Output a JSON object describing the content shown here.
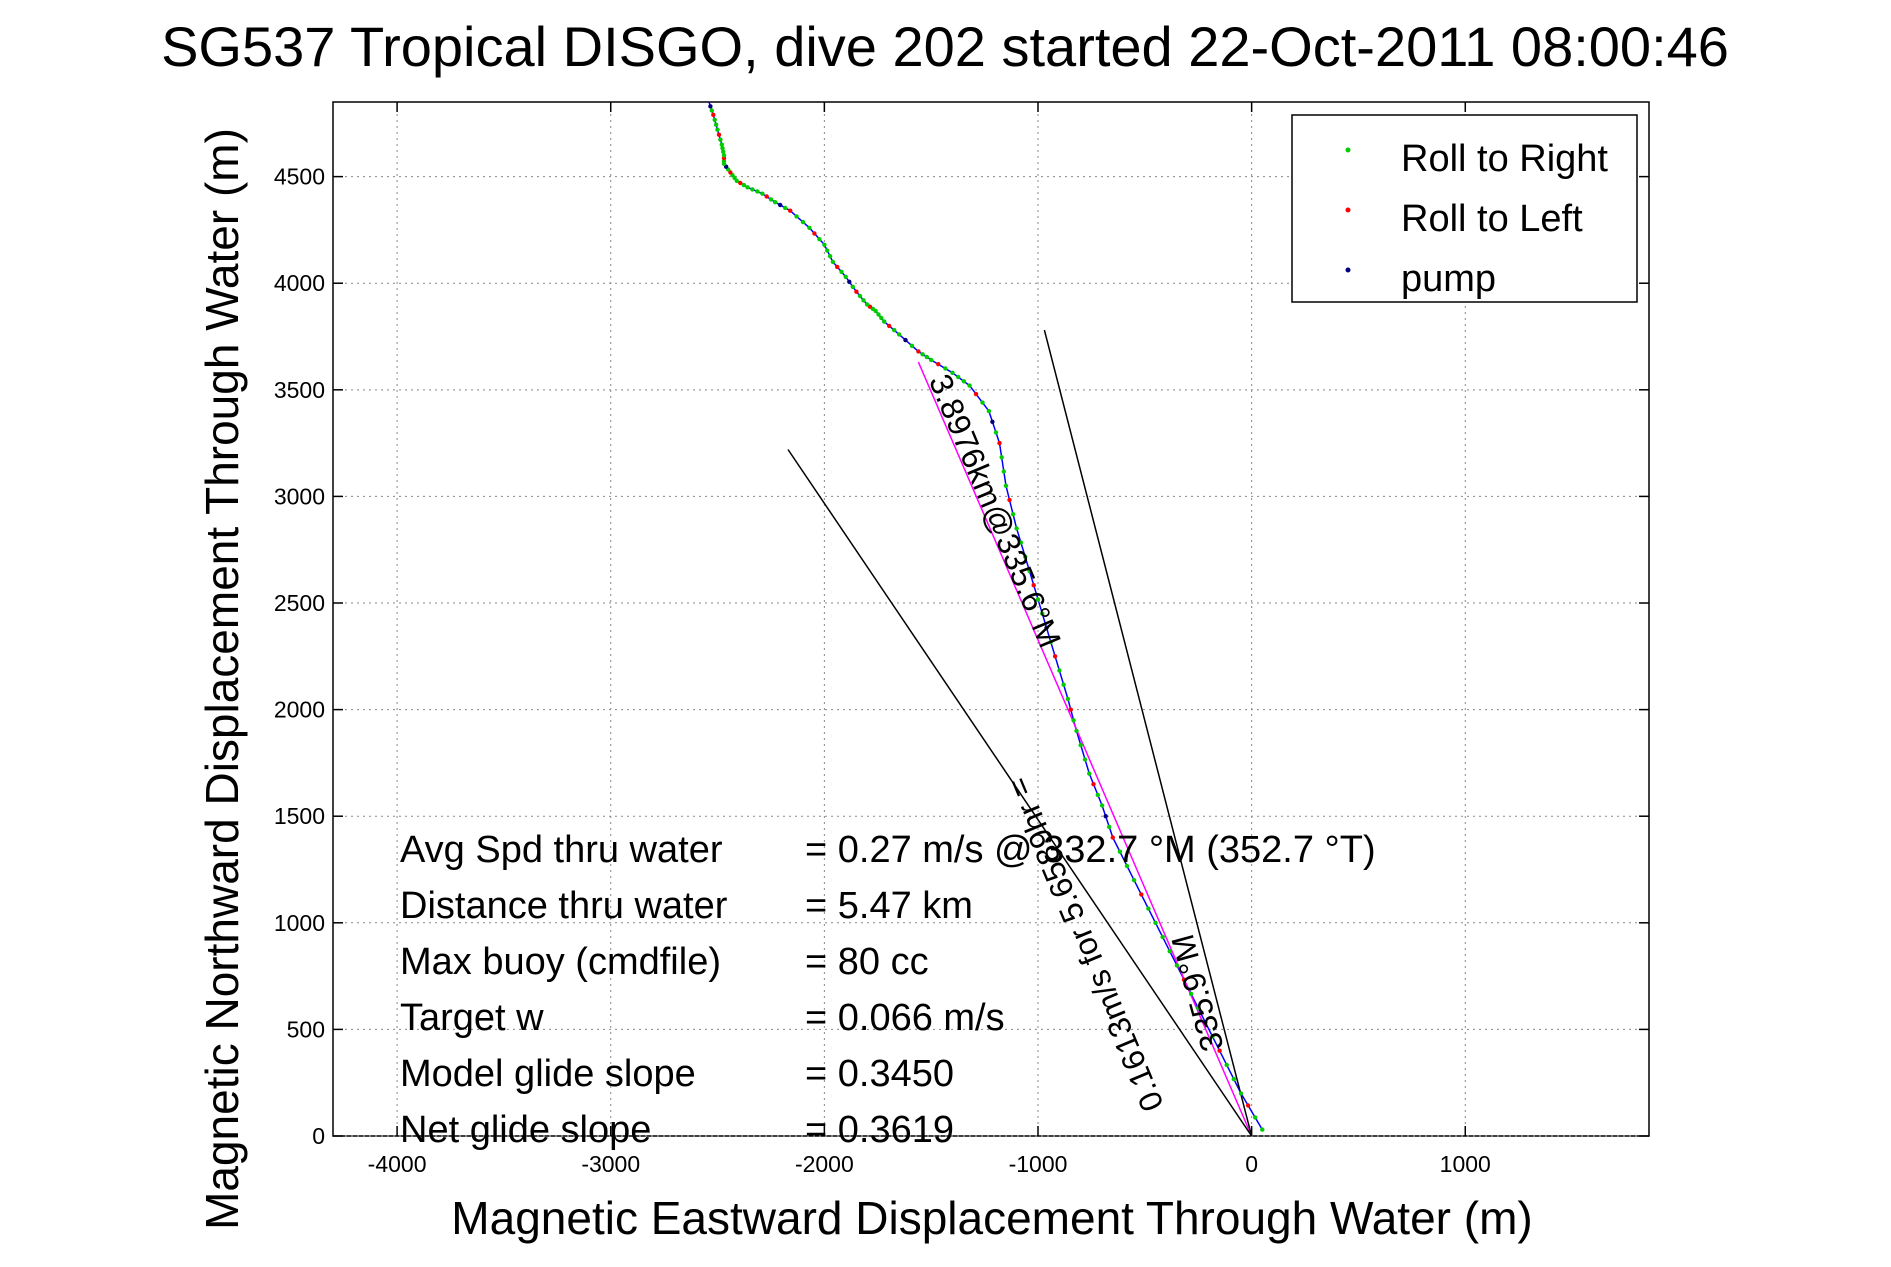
{
  "chart_data": {
    "type": "line",
    "title": "SG537 Tropical DISGO, dive 202 started 22-Oct-2011 08:00:46",
    "xlabel": "Magnetic Eastward Displacement Through Water (m)",
    "ylabel": "Magnetic Northward Displacement Through Water (m)",
    "xlim": [
      -4300,
      1860
    ],
    "ylim": [
      0,
      4850
    ],
    "xticks": [
      -4000,
      -3000,
      -2000,
      -1000,
      0,
      1000
    ],
    "yticks": [
      0,
      500,
      1000,
      1500,
      2000,
      2500,
      3000,
      3500,
      4000,
      4500
    ],
    "grid": true,
    "legend_position": "top-right",
    "legend": [
      {
        "label": "Roll to Right",
        "color": "#00cc00"
      },
      {
        "label": "Roll to Left",
        "color": "#ff0000"
      },
      {
        "label": "pump",
        "color": "#000080"
      }
    ],
    "series": [
      {
        "color": "#0000ff",
        "x": [
          50,
          -50,
          -150,
          -250,
          -350,
          -450,
          -550,
          -650,
          -700,
          -760,
          -820,
          -860,
          -920,
          -980,
          -1040,
          -1100,
          -1150,
          -1180,
          -1230,
          -1320,
          -1400,
          -1500,
          -1560,
          -1650,
          -1720,
          -1760,
          -1800,
          -1850,
          -1900,
          -1960,
          -2000,
          -2070,
          -2160,
          -2230,
          -2290,
          -2360,
          -2410,
          -2440,
          -2470,
          -2470,
          -2480,
          -2500,
          -2520,
          -2540
        ],
        "y": [
          30,
          200,
          400,
          600,
          800,
          1000,
          1200,
          1400,
          1550,
          1700,
          1900,
          2050,
          2250,
          2450,
          2650,
          2850,
          3050,
          3250,
          3400,
          3520,
          3580,
          3640,
          3680,
          3760,
          3820,
          3870,
          3900,
          3960,
          4030,
          4100,
          4180,
          4260,
          4340,
          4380,
          4420,
          4450,
          4480,
          4520,
          4560,
          4600,
          4650,
          4720,
          4790,
          4850
        ]
      },
      {
        "color": "#ff00ff",
        "x": [
          0,
          -1560
        ],
        "y": [
          0,
          3630
        ]
      },
      {
        "color": "#000000",
        "x": [
          0,
          -2170
        ],
        "y": [
          0,
          3220
        ]
      },
      {
        "color": "#000000",
        "x": [
          0,
          -970
        ],
        "y": [
          0,
          3780
        ]
      }
    ],
    "annotations": [
      {
        "label": "Avg Spd thru water",
        "value": "=  0.27 m/s @ 332.7 °M (352.7 °T)"
      },
      {
        "label": "Distance thru water",
        "value": "=  5.47 km"
      },
      {
        "label": "Max buoy (cmdfile)",
        "value": "= 80 cc"
      },
      {
        "label": "Target w",
        "value": "= 0.066 m/s"
      },
      {
        "label": "Model glide slope",
        "value": "= 0.3450"
      },
      {
        "label": "Net glide slope",
        "value": "= 0.3619"
      }
    ],
    "track_labels": [
      "3.8976km@335.6°M",
      "0.1613m/s for 5.6589hr =",
      "335.9°M"
    ]
  }
}
